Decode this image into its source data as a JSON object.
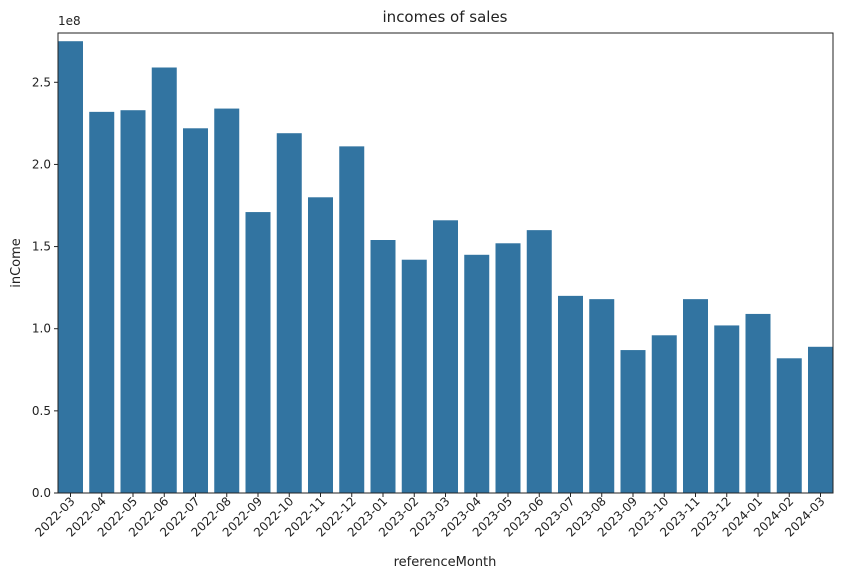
{
  "chart_data": {
    "type": "bar",
    "title": "incomes of sales",
    "xlabel": "referenceMonth",
    "ylabel": "inCome",
    "y_offset_label": "1e8",
    "y_scale": 100000000,
    "ylim": [
      0,
      280000000
    ],
    "yticks": [
      0,
      50000000,
      100000000,
      150000000,
      200000000,
      250000000
    ],
    "ytick_labels": [
      "0.0",
      "0.5",
      "1.0",
      "1.5",
      "2.0",
      "2.5"
    ],
    "grid": false,
    "bar_color": "#3274a1",
    "categories": [
      "2022-03",
      "2022-04",
      "2022-05",
      "2022-06",
      "2022-07",
      "2022-08",
      "2022-09",
      "2022-10",
      "2022-11",
      "2022-12",
      "2023-01",
      "2023-02",
      "2023-03",
      "2023-04",
      "2023-05",
      "2023-06",
      "2023-07",
      "2023-08",
      "2023-09",
      "2023-10",
      "2023-11",
      "2023-12",
      "2024-01",
      "2024-02",
      "2024-03"
    ],
    "values": [
      275000000,
      232000000,
      233000000,
      259000000,
      222000000,
      234000000,
      171000000,
      219000000,
      180000000,
      211000000,
      154000000,
      142000000,
      166000000,
      145000000,
      152000000,
      160000000,
      120000000,
      118000000,
      87000000,
      96000000,
      118000000,
      102000000,
      109000000,
      82000000,
      89000000
    ]
  }
}
